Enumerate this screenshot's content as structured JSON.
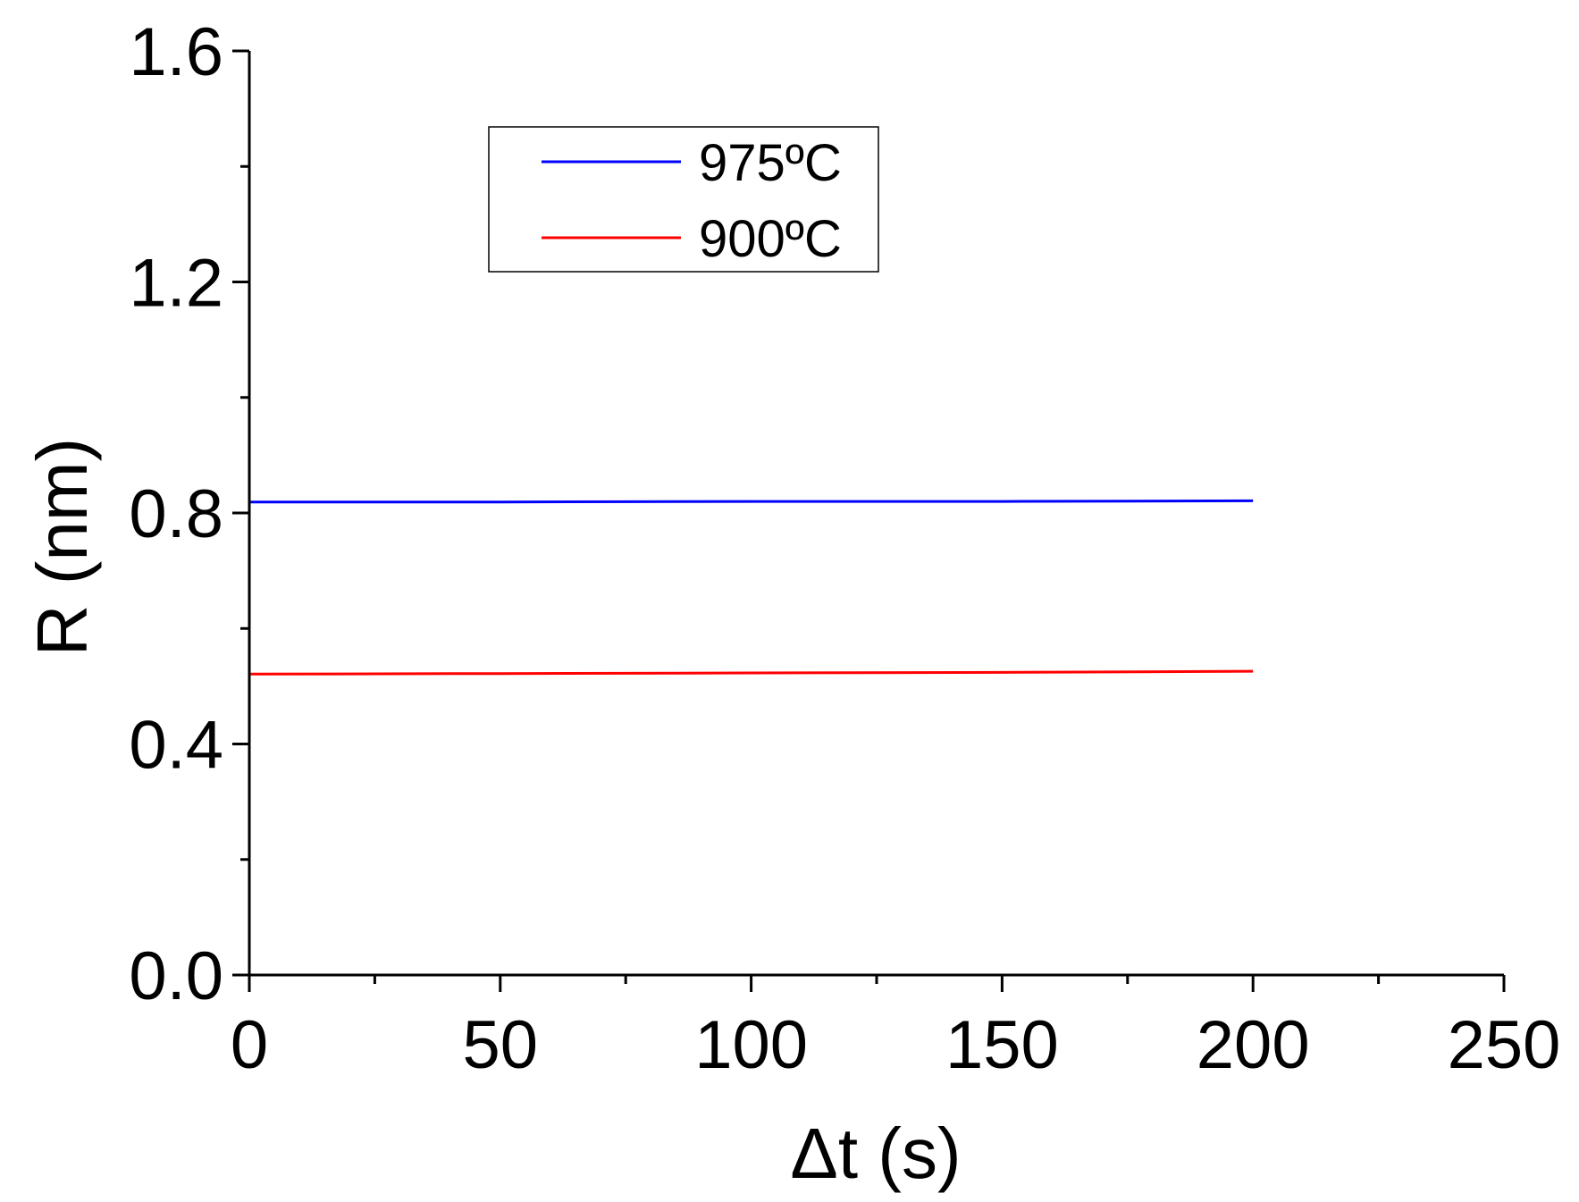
{
  "chart_data": {
    "type": "line",
    "xlabel": "Δt (s)",
    "ylabel": "R (nm)",
    "xlim": [
      0,
      250
    ],
    "ylim": [
      0,
      1.6
    ],
    "x_major_ticks": [
      0,
      50,
      100,
      150,
      200,
      250
    ],
    "x_tick_labels": [
      "0",
      "50",
      "100",
      "150",
      "200",
      "250"
    ],
    "x_minor_ticks": [
      25,
      75,
      125,
      175,
      225
    ],
    "y_major_ticks": [
      0.0,
      0.4,
      0.8,
      1.2,
      1.6
    ],
    "y_tick_labels": [
      "0.0",
      "0.4",
      "0.8",
      "1.2",
      "1.6"
    ],
    "y_minor_ticks": [
      0.2,
      0.6,
      1.0,
      1.4
    ],
    "grid": false,
    "legend_position": "top-center",
    "series": [
      {
        "name": "975ºC",
        "color": "#0000ff",
        "x": [
          0,
          50,
          100,
          150,
          200
        ],
        "y": [
          0.819,
          0.819,
          0.82,
          0.82,
          0.821
        ]
      },
      {
        "name": "900ºC",
        "color": "#ff0000",
        "x": [
          0,
          50,
          100,
          150,
          200
        ],
        "y": [
          0.521,
          0.522,
          0.523,
          0.524,
          0.526
        ]
      }
    ]
  }
}
